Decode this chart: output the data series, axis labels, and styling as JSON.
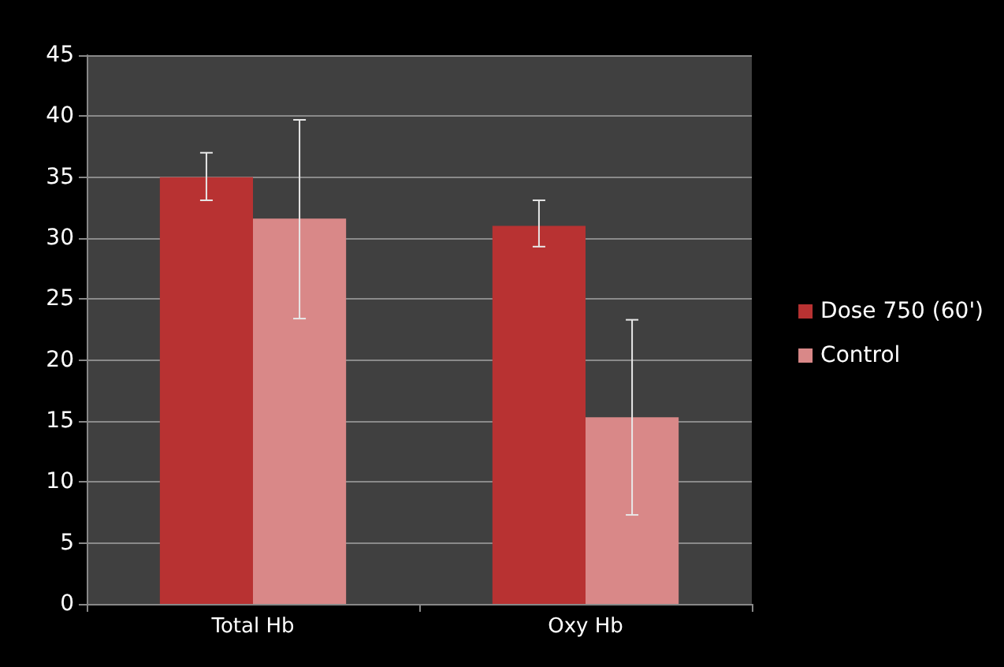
{
  "chart_data": {
    "type": "bar",
    "categories": [
      "Total Hb",
      "Oxy Hb"
    ],
    "series": [
      {
        "name": "Dose 750 (60')",
        "color": "#b83232",
        "values": [
          35,
          31
        ],
        "errors": [
          [
            33.1,
            37
          ],
          [
            29.3,
            33.1
          ]
        ]
      },
      {
        "name": "Control",
        "color": "#d98888",
        "values": [
          31.6,
          15.3
        ],
        "errors": [
          [
            23.4,
            39.7
          ],
          [
            7.3,
            23.3
          ]
        ]
      }
    ],
    "ylim": [
      0,
      45
    ],
    "yticks": [
      0,
      5,
      10,
      15,
      20,
      25,
      30,
      35,
      40,
      45
    ],
    "grid": "y",
    "legend": "right"
  }
}
